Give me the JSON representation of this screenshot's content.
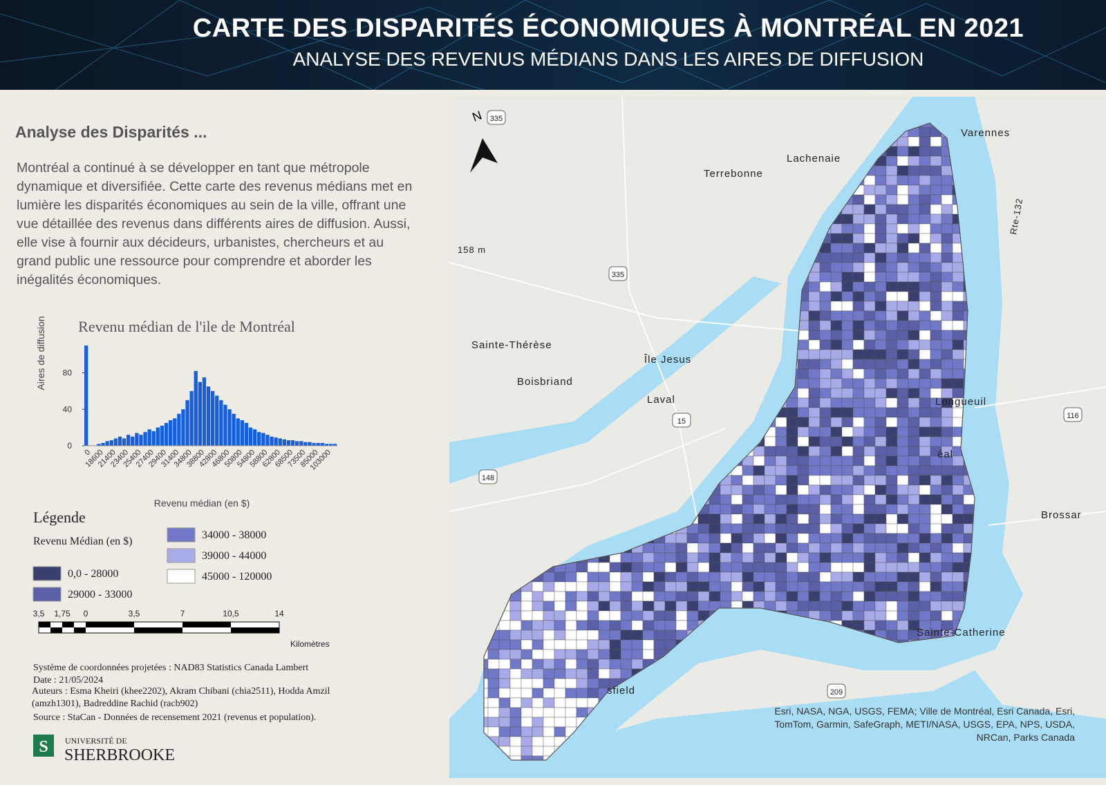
{
  "header": {
    "title": "CARTE DES DISPARITÉS ÉCONOMIQUES À MONTRÉAL EN 2021",
    "subtitle": "ANALYSE DES REVENUS MÉDIANS DANS LES AIRES DE DIFFUSION"
  },
  "panel": {
    "heading": "Analyse des Disparités ...",
    "text": "Montréal a continué à se développer en tant que métropole dynamique et diversifiée. Cette carte des revenus médians met en lumière les disparités économiques au sein de la ville, offrant une vue détaillée des revenus dans différents aires de diffusion. Aussi, elle  vise à fournir aux décideurs, urbanistes, chercheurs et au grand public une ressource pour comprendre et aborder les inégalités économiques."
  },
  "chart_data": {
    "type": "bar",
    "title": "Revenu médian de l'ile de Montréal",
    "y_label": "Aires de diffusion",
    "x_label": "Revenu médian (en $)",
    "x_labels": [
      0,
      18600,
      21400,
      23400,
      25400,
      27400,
      29400,
      31400,
      34800,
      38800,
      42800,
      46800,
      50800,
      54800,
      58800,
      62800,
      68500,
      73500,
      85000,
      103000
    ],
    "values": [
      110,
      0,
      0,
      2,
      3,
      5,
      6,
      8,
      10,
      8,
      12,
      10,
      14,
      12,
      15,
      18,
      16,
      20,
      22,
      25,
      28,
      30,
      35,
      40,
      50,
      60,
      82,
      70,
      75,
      65,
      60,
      55,
      50,
      45,
      40,
      35,
      30,
      28,
      25,
      20,
      18,
      15,
      14,
      12,
      10,
      9,
      8,
      7,
      6,
      6,
      5,
      5,
      4,
      4,
      3,
      3,
      3,
      2,
      2,
      2
    ],
    "color": "#1560e0",
    "ylim": [
      0,
      110
    ],
    "yticks": [
      0,
      40,
      80
    ]
  },
  "legend": {
    "title": "Légende",
    "subtitle": "Revenu Médian (en $)",
    "items": [
      {
        "label": "0,0 - 28000",
        "color": "#3b3f6e"
      },
      {
        "label": "29000 - 33000",
        "color": "#5a5fa6"
      },
      {
        "label": "34000 - 38000",
        "color": "#7278c8"
      },
      {
        "label": "39000 - 44000",
        "color": "#a9abe8"
      },
      {
        "label": "45000 - 120000",
        "color": "#ffffff"
      }
    ]
  },
  "scale": {
    "labels": [
      "3,5",
      "1,75",
      "0",
      "3,5",
      "7",
      "10,5",
      "14"
    ],
    "unit": "Kilomètres"
  },
  "metadata": [
    "Système de coordonnées projetées : NAD83 Statistics Canada Lambert",
    "Date :  21/05/2024",
    "Auteurs : Esma Kheiri (khee2202), Akram Chibani (chia2511), Hodda Amzil (amzh1301), Badreddine Rachid (racb902)",
    "Source : StaCan - Données de recensement 2021 (revenus et population)."
  ],
  "logo": {
    "line1": "UNIVERSITÉ DE",
    "line2": "SHERBROOKE"
  },
  "map": {
    "north": "N",
    "places": [
      "Varennes",
      "Lachenaie",
      "Terrebonne",
      "Sainte-Thérèse",
      "Île Jesus",
      "Boisbriand",
      "Laval",
      "Longueuil",
      "Brossar",
      "Sainte-Catherine",
      "158 m",
      "Rte-132",
      "éal",
      "sfield"
    ],
    "shields": [
      "335",
      "335",
      "15",
      "148",
      "116",
      "209"
    ],
    "attribution": "Esri, NASA, NGA, USGS, FEMA; Ville de Montréal, Esri Canada, Esri, TomTom, Garmin, SafeGraph, METI/NASA, USGS, EPA, NPS, USDA, NRCan, Parks Canada"
  }
}
